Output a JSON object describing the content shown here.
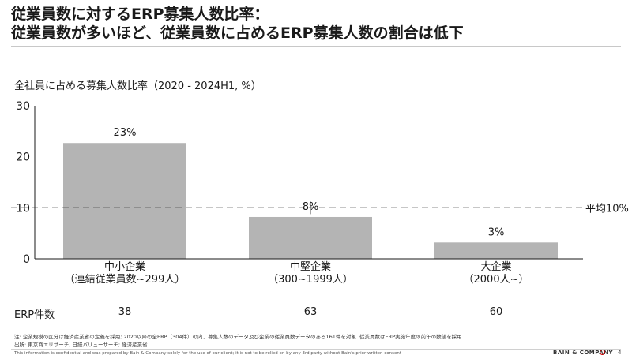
{
  "title": {
    "line1": "従業員数に対するERP募集人数比率：",
    "line2": "従業員数が多いほど、従業員数に占めるERP募集人数の割合は低下"
  },
  "chart_data": {
    "type": "bar",
    "subtitle": "全社員に占める募集人数比率（2020 - 2024H1, %）",
    "categories": [
      {
        "name": "中小企業",
        "sub": "（連結従業員数~299人）"
      },
      {
        "name": "中堅企業",
        "sub": "（300~1999人）"
      },
      {
        "name": "大企業",
        "sub": "（2000人~）"
      }
    ],
    "values": [
      22.7,
      8.2,
      3.2
    ],
    "value_labels": [
      "23%",
      "8%",
      "3%"
    ],
    "ylim": [
      0,
      30
    ],
    "yticks": [
      "0",
      "10",
      "20",
      "30"
    ],
    "ytick_values": [
      0,
      10,
      20,
      30
    ],
    "average": {
      "value": 10,
      "label": "平均10%"
    },
    "bar_color": "#b4b4b4",
    "grid": false
  },
  "erp": {
    "label": "ERP件数",
    "values": [
      "38",
      "63",
      "60"
    ]
  },
  "notes": {
    "line1": "注: 企業規模の区分は経済産業省の定義を採用; 2020以降の全ERP（304件）の内、募集人数のデータ及び企業の従業員数データのある161件を対象. 従業員数はERP実施年度の前年の数値を採用",
    "line2": "出所: 東京商エリサーチ; 日経バリューサーチ; 経済産業省"
  },
  "footer": {
    "disclaimer": "This information is confidential and was prepared by Bain & Company solely for the use of our client; it is not to be relied on by any 3rd party without Bain's prior written consent",
    "brand": "BAIN & COMPANY",
    "page": "4"
  }
}
